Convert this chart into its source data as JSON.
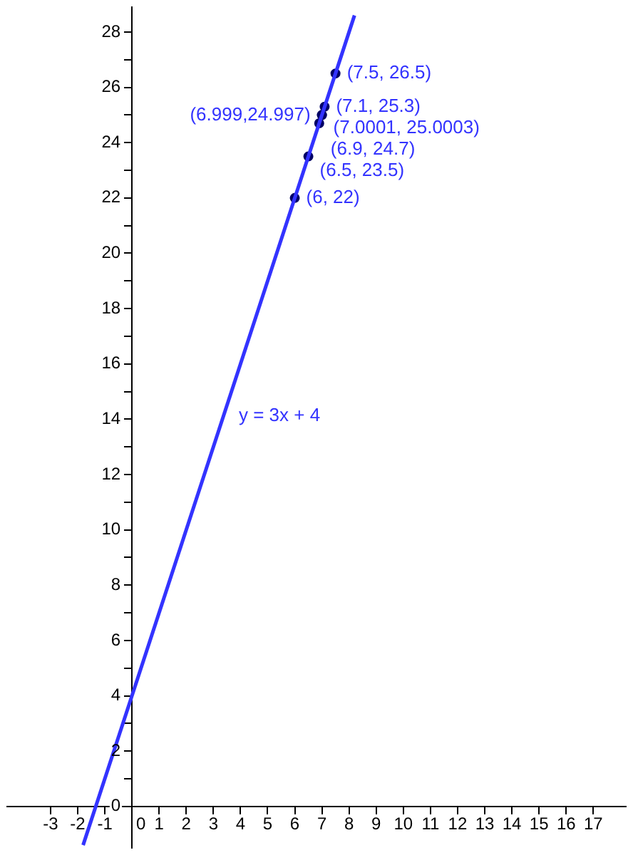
{
  "chart_data": {
    "type": "scatter",
    "xlim": [
      -4.6,
      18.2
    ],
    "ylim": [
      -1.5,
      28.9
    ],
    "xticks": [
      -3,
      -2,
      -1,
      0,
      1,
      2,
      3,
      4,
      5,
      6,
      7,
      8,
      9,
      10,
      11,
      12,
      13,
      14,
      15,
      16,
      17
    ],
    "yticks": [
      0,
      {
        "value": 1,
        "label": null
      },
      2,
      {
        "value": 3,
        "label": null
      },
      4,
      {
        "value": 5,
        "label": null
      },
      6,
      {
        "value": 7,
        "label": null
      },
      8,
      {
        "value": 9,
        "label": null
      },
      10,
      {
        "value": 11,
        "label": null
      },
      12,
      {
        "value": 13,
        "label": null
      },
      14,
      {
        "value": 15,
        "label": null
      },
      16,
      {
        "value": 17,
        "label": null
      },
      18,
      {
        "value": 19,
        "label": null
      },
      20,
      {
        "value": 21,
        "label": null
      },
      22,
      {
        "value": 23,
        "label": null
      },
      24,
      {
        "value": 25,
        "label": null
      },
      26,
      {
        "value": 27,
        "label": null
      },
      28
    ],
    "grid": false,
    "legend": false,
    "series": [
      {
        "type": "line",
        "color": "#3333ff",
        "x": [
          -1.8,
          8.2
        ],
        "values": [
          -1.4,
          28.6
        ],
        "marker": "none"
      },
      {
        "type": "scatter",
        "color": "#000066",
        "x": [
          6,
          6.5,
          6.9,
          6.999,
          7.0001,
          7.1,
          7.5
        ],
        "values": [
          22,
          23.5,
          24.7,
          24.997,
          25.0003,
          25.3,
          26.5
        ],
        "marker": "circle",
        "value_labels": [
          "(6, 22)",
          "(6.5, 23.5)",
          "(6.9, 24.7)",
          "(6.999,24.997)",
          "(7.0001, 25.0003)",
          "(7.1, 25.3)",
          "(7.5, 26.5)"
        ]
      }
    ],
    "annotations": [
      "y = 3x + 4"
    ]
  }
}
